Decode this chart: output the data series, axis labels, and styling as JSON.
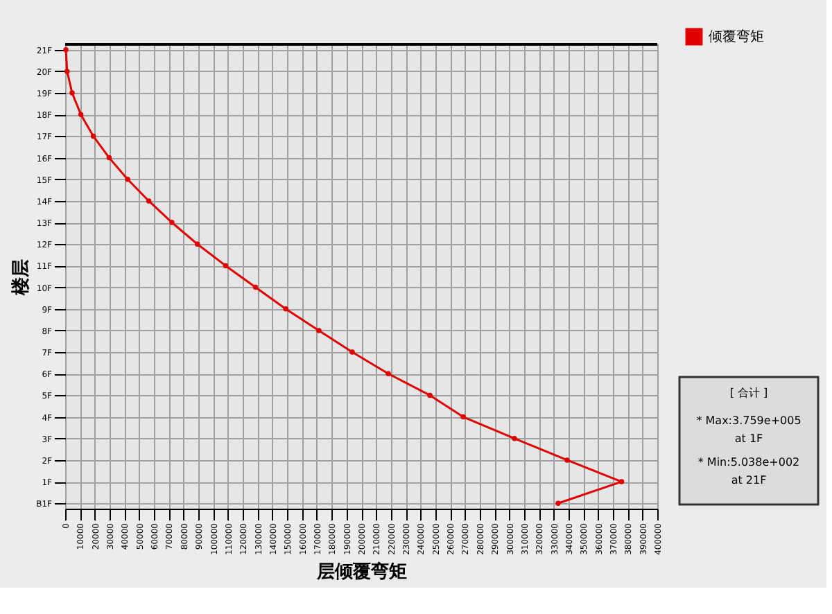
{
  "chart_data": {
    "type": "line",
    "orientation": "horizontal",
    "xlabel": "层倾覆弯矩",
    "ylabel": "楼层",
    "categories": [
      "21F",
      "20F",
      "19F",
      "18F",
      "17F",
      "16F",
      "15F",
      "14F",
      "13F",
      "12F",
      "11F",
      "10F",
      "9F",
      "8F",
      "7F",
      "6F",
      "5F",
      "4F",
      "3F",
      "2F",
      "1F",
      "B1F"
    ],
    "series": [
      {
        "name": "倾覆弯矩",
        "color": "#e00000",
        "values": [
          500,
          1300,
          4700,
          10600,
          19000,
          29700,
          42200,
          56500,
          72100,
          89300,
          108400,
          128600,
          149000,
          171400,
          193900,
          218300,
          246400,
          268900,
          303500,
          339100,
          375900,
          333000
        ]
      }
    ],
    "xlim": [
      0,
      400000
    ],
    "xticks": [
      0,
      10000,
      20000,
      30000,
      40000,
      50000,
      60000,
      70000,
      80000,
      90000,
      100000,
      110000,
      120000,
      130000,
      140000,
      150000,
      160000,
      170000,
      180000,
      190000,
      200000,
      210000,
      220000,
      230000,
      240000,
      250000,
      260000,
      270000,
      280000,
      290000,
      300000,
      310000,
      320000,
      330000,
      340000,
      350000,
      360000,
      370000,
      380000,
      390000,
      400000
    ],
    "grid": true,
    "legend": "top right",
    "marker": "circle",
    "line_style": "solid",
    "annotations": [
      "[ 合计 ]",
      "* Max:3.759e+005",
      "at 1F",
      "* Min:5.038e+002",
      "at 21F"
    ]
  }
}
